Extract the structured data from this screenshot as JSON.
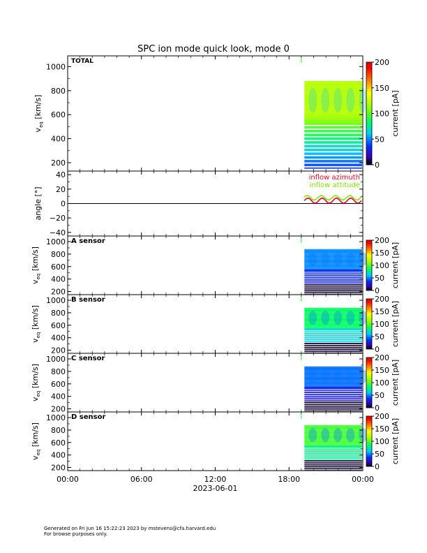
{
  "title": "SPC ion mode quick look, mode 0",
  "footer": {
    "line1": "Generated on Fri Jun 16 15:22:23 2023 by mstevens@cfa.harvard.edu",
    "line2": "For browse purposes only."
  },
  "x_axis": {
    "tick_labels": [
      "00:00",
      "06:00",
      "12:00",
      "18:00",
      "00:00"
    ],
    "date_label": "2023-06-01"
  },
  "chart_data": [
    {
      "type": "heatmap",
      "panel_label": "TOTAL",
      "ylabel": "v",
      "ylabel_sub": "eq",
      "ylabel_unit": "[km/s]",
      "y_ticks": [
        "200",
        "400",
        "600",
        "800",
        "1000"
      ],
      "ylim": [
        130,
        1090
      ],
      "colorbar_label": "current [pA]",
      "colorbar_ticks": [
        "0",
        "50",
        "100",
        "150",
        "200"
      ],
      "clim": [
        0,
        200
      ],
      "data_start": "19:15",
      "data_end": "24:00",
      "velocity_range": [
        150,
        880
      ]
    },
    {
      "type": "line",
      "ylabel": "angle [°]",
      "y_ticks": [
        "−40",
        "−20",
        "0",
        "20",
        "40"
      ],
      "ylim": [
        -45,
        45
      ],
      "series": [
        {
          "name": "inflow azimuth",
          "color": "#e8002a"
        },
        {
          "name": "inflow attitude",
          "color": "#88e000"
        }
      ]
    },
    {
      "type": "heatmap",
      "panel_label": "A sensor",
      "ylabel": "v",
      "ylabel_sub": "eq",
      "ylabel_unit": "[km/s]",
      "y_ticks": [
        "200",
        "400",
        "600",
        "800",
        "1000"
      ],
      "ylim": [
        150,
        1090
      ],
      "colorbar_label": "current [pA]",
      "colorbar_ticks": [
        "0",
        "50",
        "100",
        "150",
        "200"
      ],
      "clim": [
        0,
        200
      ]
    },
    {
      "type": "heatmap",
      "panel_label": "B sensor",
      "ylabel": "v",
      "ylabel_sub": "eq",
      "ylabel_unit": "[km/s]",
      "y_ticks": [
        "200",
        "400",
        "600",
        "800",
        "1000"
      ],
      "ylim": [
        150,
        1090
      ],
      "colorbar_label": "current [pA]",
      "colorbar_ticks": [
        "0",
        "50",
        "100",
        "150",
        "200"
      ],
      "clim": [
        0,
        200
      ]
    },
    {
      "type": "heatmap",
      "panel_label": "C sensor",
      "ylabel": "v",
      "ylabel_sub": "eq",
      "ylabel_unit": "[km/s]",
      "y_ticks": [
        "200",
        "400",
        "600",
        "800",
        "1000"
      ],
      "ylim": [
        150,
        1090
      ],
      "colorbar_label": "current [pA]",
      "colorbar_ticks": [
        "0",
        "50",
        "100",
        "150",
        "200"
      ],
      "clim": [
        0,
        200
      ]
    },
    {
      "type": "heatmap",
      "panel_label": "D sensor",
      "ylabel": "v",
      "ylabel_sub": "eq",
      "ylabel_unit": "[km/s]",
      "y_ticks": [
        "200",
        "400",
        "600",
        "800",
        "1000"
      ],
      "ylim": [
        150,
        1090
      ],
      "colorbar_label": "current [pA]",
      "colorbar_ticks": [
        "0",
        "50",
        "100",
        "150",
        "200"
      ],
      "clim": [
        0,
        200
      ]
    }
  ]
}
